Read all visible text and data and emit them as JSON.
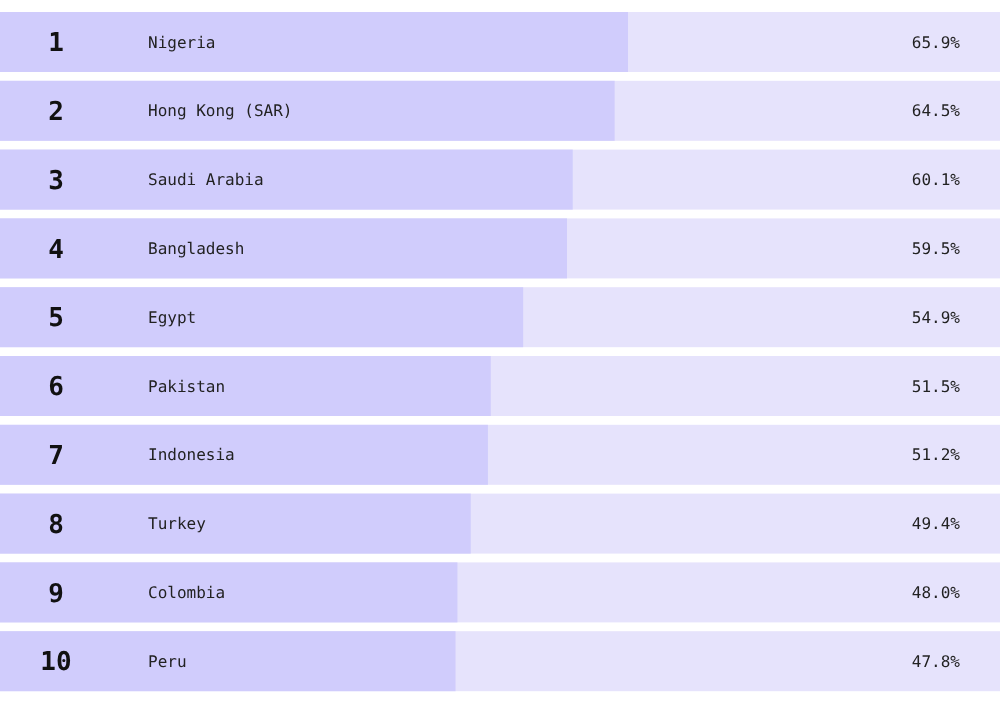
{
  "chart_data": {
    "type": "bar",
    "orientation": "horizontal",
    "categories": [
      "Nigeria",
      "Hong Kong (SAR)",
      "Saudi Arabia",
      "Bangladesh",
      "Egypt",
      "Pakistan",
      "Indonesia",
      "Turkey",
      "Colombia",
      "Peru"
    ],
    "values": [
      65.9,
      64.5,
      60.1,
      59.5,
      54.9,
      51.5,
      51.2,
      49.4,
      48.0,
      47.8
    ],
    "value_labels": [
      "65.9%",
      "64.5%",
      "60.1%",
      "59.5%",
      "54.9%",
      "51.5%",
      "51.2%",
      "49.4%",
      "48.0%",
      "47.8%"
    ],
    "color": "#d0ccfc",
    "annotations": [
      "1",
      "2",
      "3",
      "4",
      "5",
      "6",
      "7",
      "8",
      "9",
      "10"
    ]
  }
}
